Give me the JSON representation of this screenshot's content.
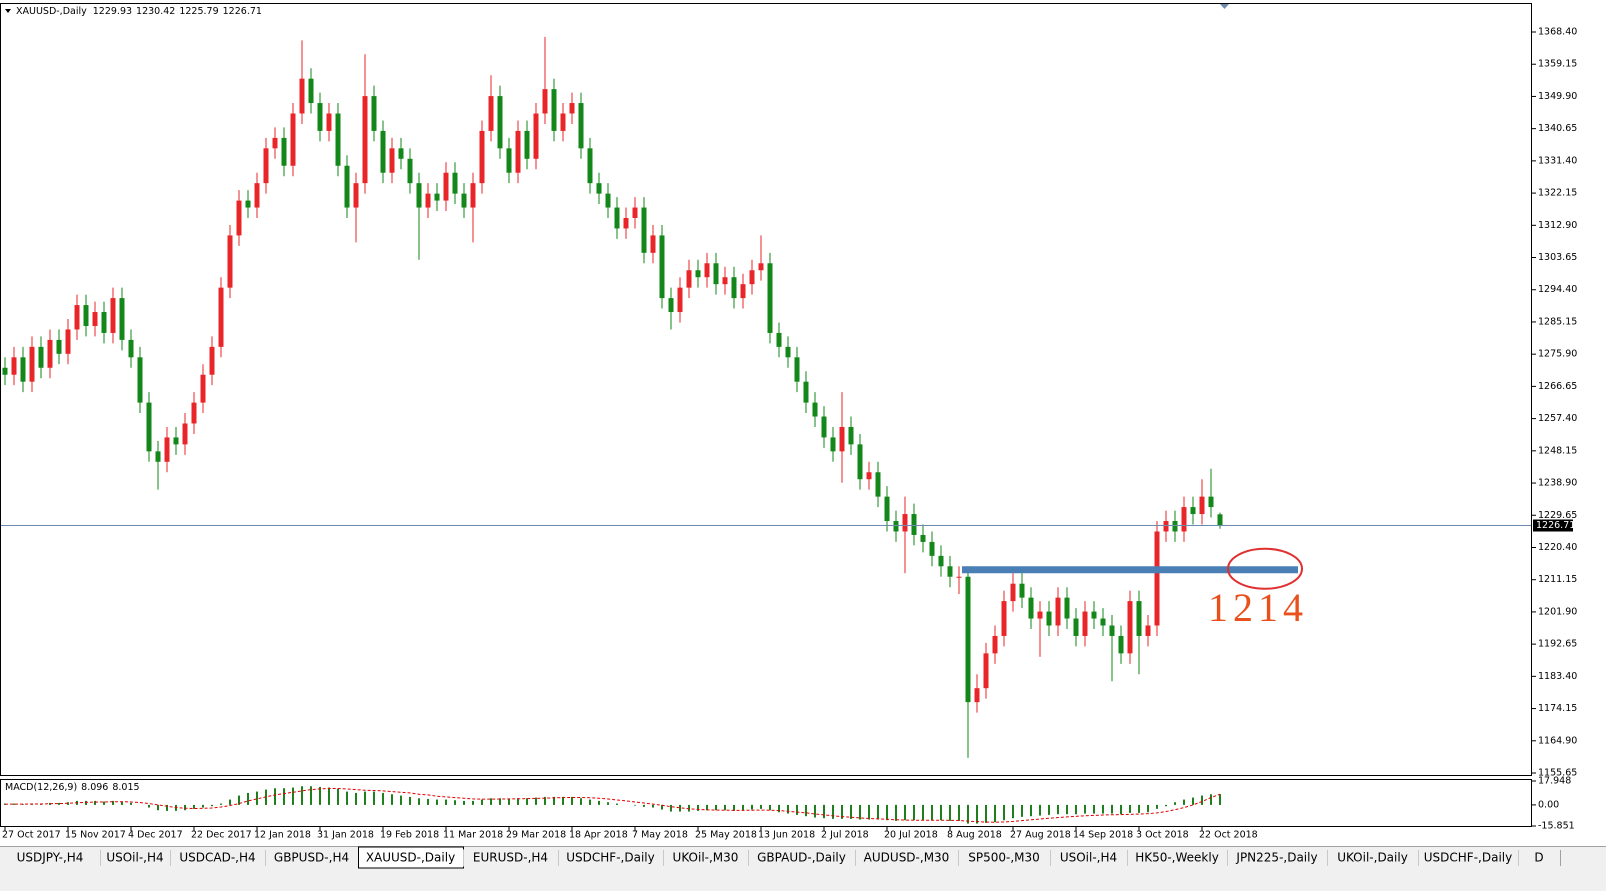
{
  "chart_data": [
    {
      "type": "candlestick",
      "title": "XAUUSD-,Daily",
      "up_color": "#e8262a",
      "down_color": "#13871a",
      "categories": [
        "27 Oct 2017",
        null,
        null,
        null,
        null,
        null,
        null,
        "15 Nov 2017",
        null,
        null,
        null,
        null,
        null,
        null,
        "4 Dec 2017",
        null,
        null,
        null,
        null,
        null,
        null,
        "22 Dec 2017",
        null,
        null,
        null,
        null,
        null,
        null,
        "12 Jan 2018",
        null,
        null,
        null,
        null,
        null,
        null,
        "31 Jan 2018",
        null,
        null,
        null,
        null,
        null,
        null,
        "19 Feb 2018",
        null,
        null,
        null,
        null,
        null,
        null,
        "11 Mar 2018",
        null,
        null,
        null,
        null,
        null,
        null,
        "29 Mar 2018",
        null,
        null,
        null,
        null,
        null,
        null,
        "18 Apr 2018",
        null,
        null,
        null,
        null,
        null,
        null,
        "7 May 2018",
        null,
        null,
        null,
        null,
        null,
        null,
        "25 May 2018",
        null,
        null,
        null,
        null,
        null,
        null,
        "13 Jun 2018",
        null,
        null,
        null,
        null,
        null,
        null,
        "2 Jul 2018",
        null,
        null,
        null,
        null,
        null,
        null,
        "20 Jul 2018",
        null,
        null,
        null,
        null,
        null,
        null,
        "8 Aug 2018",
        null,
        null,
        null,
        null,
        null,
        null,
        "27 Aug 2018",
        null,
        null,
        null,
        null,
        null,
        null,
        "14 Sep 2018",
        null,
        null,
        null,
        null,
        null,
        null,
        "3 Oct 2018",
        null,
        null,
        null,
        null,
        null,
        null,
        "22 Oct 2018",
        null,
        null
      ],
      "open": [
        1272,
        1270,
        1275,
        1268,
        1278,
        1272,
        1280,
        1276,
        1283,
        1290,
        1284,
        1288,
        1282,
        1292,
        1280,
        1275,
        1262,
        1248,
        1245,
        1252,
        1250,
        1256,
        1262,
        1270,
        1278,
        1295,
        1310,
        1320,
        1318,
        1325,
        1335,
        1338,
        1330,
        1345,
        1355,
        1348,
        1340,
        1345,
        1330,
        1318,
        1325,
        1350,
        1340,
        1328,
        1335,
        1332,
        1325,
        1318,
        1322,
        1320,
        1328,
        1322,
        1318,
        1325,
        1340,
        1350,
        1335,
        1328,
        1340,
        1332,
        1345,
        1352,
        1340,
        1345,
        1348,
        1335,
        1325,
        1322,
        1318,
        1312,
        1315,
        1318,
        1305,
        1310,
        1292,
        1288,
        1295,
        1300,
        1298,
        1302,
        1296,
        1298,
        1292,
        1296,
        1300,
        1302,
        1282,
        1278,
        1275,
        1268,
        1262,
        1258,
        1252,
        1248,
        1255,
        1250,
        1240,
        1242,
        1235,
        1228,
        1225,
        1230,
        1224,
        1222,
        1218,
        1215,
        1212,
        1212,
        1176,
        1180,
        1190,
        1195,
        1205,
        1210,
        1206,
        1200,
        1202,
        1198,
        1206,
        1200,
        1195,
        1202,
        1200,
        1198,
        1195,
        1190,
        1205,
        1195,
        1198,
        1225,
        1228,
        1225,
        1232,
        1230,
        1235,
        1229.93
      ],
      "high": [
        1275,
        1278,
        1278,
        1281,
        1281,
        1283,
        1283,
        1286,
        1293,
        1293,
        1291,
        1291,
        1295,
        1295,
        1283,
        1278,
        1265,
        1251,
        1255,
        1255,
        1259,
        1265,
        1273,
        1281,
        1298,
        1313,
        1323,
        1323,
        1328,
        1338,
        1341,
        1341,
        1348,
        1366,
        1358,
        1351,
        1348,
        1348,
        1333,
        1328,
        1362,
        1353,
        1343,
        1338,
        1338,
        1335,
        1328,
        1325,
        1325,
        1331,
        1331,
        1325,
        1328,
        1343,
        1356,
        1353,
        1338,
        1343,
        1343,
        1348,
        1367,
        1355,
        1348,
        1351,
        1351,
        1338,
        1328,
        1325,
        1321,
        1318,
        1321,
        1321,
        1313,
        1313,
        1295,
        1298,
        1303,
        1303,
        1305,
        1305,
        1301,
        1301,
        1299,
        1303,
        1310,
        1305,
        1285,
        1281,
        1278,
        1271,
        1265,
        1261,
        1255,
        1265,
        1258,
        1253,
        1245,
        1245,
        1238,
        1231,
        1235,
        1233,
        1227,
        1225,
        1221,
        1218,
        1215,
        1215,
        1184,
        1193,
        1198,
        1208,
        1213,
        1213,
        1209,
        1205,
        1205,
        1209,
        1209,
        1203,
        1205,
        1205,
        1203,
        1201,
        1198,
        1208,
        1208,
        1201,
        1228,
        1231,
        1231,
        1235,
        1235,
        1240,
        1243,
        1230.42
      ],
      "low": [
        1267,
        1267,
        1265,
        1265,
        1269,
        1269,
        1273,
        1273,
        1280,
        1281,
        1281,
        1279,
        1279,
        1277,
        1272,
        1259,
        1245,
        1237,
        1242,
        1247,
        1247,
        1253,
        1259,
        1267,
        1275,
        1292,
        1307,
        1315,
        1315,
        1322,
        1332,
        1327,
        1327,
        1342,
        1345,
        1337,
        1337,
        1327,
        1315,
        1308,
        1322,
        1337,
        1325,
        1325,
        1329,
        1322,
        1303,
        1315,
        1317,
        1317,
        1319,
        1315,
        1308,
        1322,
        1337,
        1332,
        1325,
        1325,
        1329,
        1329,
        1342,
        1337,
        1337,
        1342,
        1332,
        1322,
        1319,
        1315,
        1309,
        1309,
        1312,
        1302,
        1302,
        1289,
        1283,
        1285,
        1292,
        1295,
        1295,
        1293,
        1293,
        1289,
        1289,
        1293,
        1297,
        1279,
        1275,
        1272,
        1265,
        1259,
        1255,
        1249,
        1245,
        1239,
        1247,
        1237,
        1237,
        1232,
        1225,
        1222,
        1213,
        1221,
        1219,
        1215,
        1212,
        1209,
        1207,
        1160,
        1173,
        1177,
        1187,
        1192,
        1202,
        1203,
        1197,
        1189,
        1195,
        1195,
        1197,
        1192,
        1192,
        1197,
        1195,
        1182,
        1187,
        1187,
        1184,
        1192,
        1195,
        1222,
        1222,
        1222,
        1227,
        1227,
        1229,
        1225.79
      ],
      "close": [
        1270,
        1275,
        1268,
        1278,
        1272,
        1280,
        1276,
        1283,
        1290,
        1284,
        1288,
        1282,
        1292,
        1280,
        1275,
        1262,
        1248,
        1245,
        1252,
        1250,
        1256,
        1262,
        1270,
        1278,
        1295,
        1310,
        1320,
        1318,
        1325,
        1335,
        1338,
        1330,
        1345,
        1355,
        1348,
        1340,
        1345,
        1330,
        1318,
        1325,
        1350,
        1340,
        1328,
        1335,
        1332,
        1325,
        1318,
        1322,
        1320,
        1328,
        1322,
        1318,
        1325,
        1340,
        1350,
        1335,
        1328,
        1340,
        1332,
        1345,
        1352,
        1340,
        1345,
        1348,
        1335,
        1325,
        1322,
        1318,
        1312,
        1315,
        1318,
        1305,
        1310,
        1292,
        1288,
        1295,
        1300,
        1298,
        1302,
        1296,
        1298,
        1292,
        1296,
        1300,
        1302,
        1282,
        1278,
        1275,
        1268,
        1262,
        1258,
        1252,
        1248,
        1255,
        1250,
        1240,
        1242,
        1235,
        1228,
        1225,
        1230,
        1224,
        1222,
        1218,
        1215,
        1212,
        1212,
        1176,
        1180,
        1190,
        1195,
        1205,
        1210,
        1206,
        1200,
        1202,
        1198,
        1206,
        1200,
        1195,
        1202,
        1200,
        1198,
        1195,
        1190,
        1205,
        1195,
        1198,
        1225,
        1228,
        1225,
        1232,
        1230,
        1235,
        1232,
        1226.71
      ],
      "ylim": [
        1154.79,
        1376.44
      ],
      "yticks": [
        {
          "value": 1368.4,
          "label": "1368.40"
        },
        1359.15,
        {
          "value": 1349.9,
          "label": "1349.90"
        },
        1340.65,
        {
          "value": 1331.4,
          "label": "1331.40"
        },
        1322.15,
        {
          "value": 1312.9,
          "label": "1312.90"
        },
        1303.65,
        {
          "value": 1294.4,
          "label": "1294.40"
        },
        1285.15,
        {
          "value": 1275.9,
          "label": "1275.90"
        },
        1266.65,
        {
          "value": 1257.4,
          "label": "1257.40"
        },
        1248.15,
        {
          "value": 1238.9,
          "label": "1238.90"
        },
        1229.65,
        {
          "value": 1220.4,
          "label": "1220.40"
        },
        1211.15,
        {
          "value": 1201.9,
          "label": "1201.90"
        },
        1192.65,
        {
          "value": 1183.4,
          "label": "1183.40"
        },
        1174.15,
        {
          "value": 1164.9,
          "label": "1164.90"
        },
        1155.65
      ],
      "price_line_color": "#6d8bb0",
      "annotations": [
        {
          "value": 1214,
          "color": "#4a7fb5",
          "text_color": "#e8501c"
        }
      ]
    },
    {
      "type": "macd",
      "title": "MACD(12,26,9)",
      "series": [
        {
          "color": "#1f7f1f",
          "values": [
            1,
            1,
            0.5,
            1,
            1,
            1.5,
            1.5,
            2,
            3,
            3,
            3,
            2.5,
            3,
            2.5,
            1.5,
            0,
            -2,
            -4,
            -4.5,
            -4.5,
            -4,
            -3,
            -2,
            -1,
            1,
            4,
            7,
            9,
            10,
            11.5,
            12.5,
            12.5,
            13,
            14,
            14,
            13.5,
            13,
            12,
            10,
            9,
            10,
            10,
            9,
            8,
            7,
            6,
            5,
            4.5,
            4,
            4,
            3.5,
            3,
            3,
            4,
            5,
            5,
            4.5,
            5,
            5,
            5.5,
            6,
            6,
            6,
            6,
            5,
            4,
            3,
            2,
            1,
            0,
            -0.5,
            -1.5,
            -2,
            -3.5,
            -5,
            -5,
            -5,
            -4.5,
            -4,
            -4,
            -4,
            -4.5,
            -4,
            -3.5,
            -3,
            -4,
            -5.5,
            -6.5,
            -7.5,
            -8.5,
            -9.5,
            -10,
            -10.5,
            -10.5,
            -10.5,
            -11,
            -11,
            -11,
            -11.5,
            -12,
            -11.5,
            -11.5,
            -11.5,
            -11.5,
            -11.5,
            -12,
            -12,
            -14,
            -14,
            -13.5,
            -13,
            -11.5,
            -10,
            -9,
            -8.5,
            -8,
            -7.5,
            -7,
            -7,
            -7,
            -6.5,
            -6.5,
            -6.5,
            -6.5,
            -7,
            -6,
            -6,
            -5.5,
            -3,
            -1,
            2,
            4,
            5.5,
            7,
            8,
            8.096
          ]
        },
        {
          "color": "#e00000",
          "dashed": true,
          "values": [
            0.5,
            0.6,
            0.6,
            0.7,
            0.7,
            0.9,
            1,
            1.2,
            1.6,
            1.9,
            2.1,
            2.2,
            2.4,
            2.4,
            2.2,
            1.8,
            1,
            0,
            -1,
            -2,
            -2.5,
            -2.7,
            -2.6,
            -2.3,
            -1.6,
            -0.5,
            1,
            3,
            4.5,
            6,
            7.5,
            8.5,
            9.5,
            10.5,
            11.5,
            12,
            12.3,
            12.3,
            12,
            11.5,
            11,
            10.8,
            10.5,
            10,
            9.5,
            9,
            8,
            7.5,
            6.5,
            6,
            5.5,
            5,
            4.5,
            4.3,
            4.3,
            4.4,
            4.5,
            4.6,
            4.7,
            4.9,
            5.1,
            5.3,
            5.5,
            5.6,
            5.6,
            5.4,
            5,
            4.4,
            3.7,
            3,
            2.2,
            1.4,
            0.6,
            -0.3,
            -1.3,
            -2.2,
            -2.9,
            -3.4,
            -3.7,
            -3.9,
            -4,
            -4.1,
            -4.1,
            -4,
            -3.9,
            -4,
            -4.3,
            -4.8,
            -5.4,
            -6,
            -6.8,
            -7.5,
            -8.2,
            -8.8,
            -9.3,
            -9.8,
            -10.2,
            -10.5,
            -10.8,
            -11.2,
            -11.4,
            -11.5,
            -11.5,
            -11.5,
            -11.5,
            -11.6,
            -11.7,
            -12.2,
            -12.6,
            -12.9,
            -13,
            -12.8,
            -12.4,
            -11.8,
            -11.2,
            -10.6,
            -10,
            -9.5,
            -9,
            -8.6,
            -8.2,
            -7.9,
            -7.6,
            -7.4,
            -7.3,
            -7.1,
            -6.9,
            -6.6,
            -6,
            -5,
            -3.6,
            -2,
            0,
            2.5,
            5.5,
            8.015
          ]
        }
      ],
      "ylim": [
        -15.851,
        17.948
      ],
      "yticks": [
        17.948,
        {
          "value": 0,
          "label": "0.00"
        },
        -15.851
      ]
    }
  ],
  "tabs": {
    "labels": [
      "USDJPY-,H4",
      "USOil-,H4",
      "USDCAD-,H4",
      "GBPUSD-,H4",
      "XAUUSD-,Daily",
      "EURUSD-,H4",
      "USDCHF-,Daily",
      "UKOil-,M30",
      "GBPAUD-,Daily",
      "AUDUSD-,M30",
      "SP500-,M30",
      "USOil-,H4",
      "HK50-,Weekly",
      "JPN225-,Daily",
      "UKOil-,Daily",
      "USDCHF-,Daily",
      "D"
    ],
    "active": 4
  }
}
